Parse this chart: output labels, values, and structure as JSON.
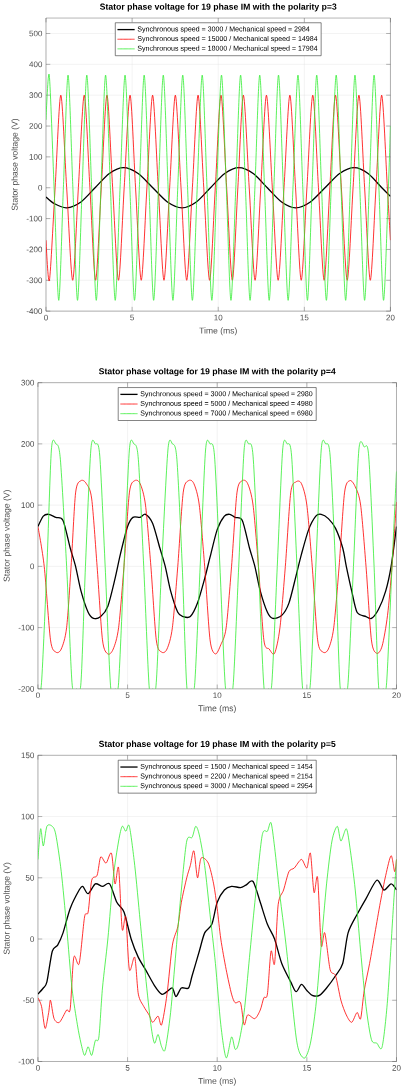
{
  "chart_data": [
    {
      "type": "line",
      "title": "Stator phase voltage for 19 phase IM with the polarity p=3",
      "xlabel": "Time (ms)",
      "ylabel": "Stator phase voltage (V)",
      "xlim": [
        0,
        20
      ],
      "xticks": [
        0,
        5,
        10,
        15,
        20
      ],
      "ylim": [
        -400,
        550
      ],
      "yticks": [
        -400,
        -300,
        -200,
        -100,
        0,
        100,
        200,
        300,
        400,
        500
      ],
      "grid": true,
      "legend": "top",
      "series": [
        {
          "name": "Synchronous speed = 3000 / Mechanical speed = 2984",
          "color": "#000000",
          "x": [
            0,
            0.5,
            1.2,
            2.03,
            2.85,
            3.68,
            4.5,
            5.35,
            6.2,
            7.05,
            7.9,
            8.73,
            9.55,
            10.38,
            11.2,
            12.03,
            12.85,
            13.68,
            14.5,
            15.35,
            16.2,
            17.05,
            17.9,
            18.7,
            19.5,
            20
          ],
          "values": [
            -30,
            -52,
            -65,
            -46,
            0,
            46,
            65,
            46,
            0,
            -46,
            -65,
            -46,
            0,
            46,
            65,
            46,
            0,
            -46,
            -65,
            -46,
            0,
            46,
            65,
            46,
            0,
            -28
          ]
        },
        {
          "name": "Synchronous speed = 15000 / Mechanical speed = 14984",
          "color": "#ff0000",
          "x": [
            0,
            0.2,
            0.53,
            0.86,
            1.2,
            1.55,
            1.88,
            2.22,
            2.55,
            2.88,
            3.21,
            3.54,
            3.87,
            4.21,
            4.54,
            4.88,
            5.2,
            5.53,
            5.86,
            6.19,
            6.52,
            6.85,
            7.18,
            7.51,
            7.84,
            8.17,
            8.5,
            8.83,
            9.16,
            9.5,
            9.83,
            10.16,
            10.49,
            10.82,
            11.14,
            11.46,
            11.8,
            12.14,
            12.47,
            12.8,
            13.14,
            13.48,
            13.82,
            14.16,
            14.49,
            14.82,
            15.15,
            15.49,
            15.82,
            16.15,
            16.48,
            16.81,
            17.15,
            17.49,
            17.83,
            18.17,
            18.5,
            18.83,
            19.16,
            19.49,
            19.82,
            20
          ],
          "values": [
            -170,
            -300,
            0,
            300,
            0,
            -300,
            0,
            300,
            0,
            -300,
            0,
            300,
            0,
            -300,
            0,
            300,
            0,
            -300,
            0,
            300,
            0,
            -300,
            0,
            300,
            0,
            -300,
            0,
            300,
            0,
            -300,
            0,
            300,
            0,
            -300,
            0,
            300,
            0,
            -300,
            0,
            300,
            0,
            -300,
            0,
            300,
            0,
            -300,
            0,
            300,
            0,
            -300,
            0,
            300,
            0,
            -300,
            0,
            300,
            0,
            -300,
            0,
            300,
            0,
            -170
          ]
        },
        {
          "name": "Synchronous speed = 18000 / Mechanical speed = 17984",
          "color": "#33ee33",
          "x": [
            0,
            0.19,
            0.47,
            0.74,
            1.01,
            1.28,
            1.56,
            1.83,
            2.1,
            2.37,
            2.65,
            2.92,
            3.19,
            3.46,
            3.74,
            4.02,
            4.3,
            4.59,
            4.87,
            5.14,
            5.42,
            5.7,
            5.98,
            6.25,
            6.53,
            6.81,
            7.09,
            7.37,
            7.65,
            7.94,
            8.22,
            8.5,
            8.78,
            9.07,
            9.35,
            9.63,
            9.91,
            10.19,
            10.47,
            10.74,
            11.02,
            11.3,
            11.58,
            11.85,
            12.13,
            12.41,
            12.69,
            12.96,
            13.23,
            13.5,
            13.78,
            14.06,
            14.34,
            14.63,
            14.91,
            15.18,
            15.45,
            15.72,
            16,
            16.28,
            16.56,
            16.85,
            17.13,
            17.4,
            17.67,
            17.94,
            18.22,
            18.5,
            18.77,
            19.05,
            19.33,
            19.6,
            19.88,
            20
          ],
          "values": [
            220,
            365,
            0,
            -365,
            0,
            365,
            0,
            -365,
            0,
            365,
            0,
            -365,
            0,
            365,
            0,
            -365,
            0,
            365,
            0,
            -365,
            0,
            365,
            0,
            -365,
            0,
            365,
            0,
            -365,
            0,
            365,
            0,
            -365,
            0,
            365,
            0,
            -365,
            0,
            365,
            0,
            -365,
            0,
            365,
            0,
            -365,
            0,
            365,
            0,
            -365,
            0,
            365,
            0,
            -365,
            0,
            365,
            0,
            -365,
            0,
            365,
            0,
            -365,
            0,
            365,
            0,
            -365,
            0,
            365,
            0,
            -365,
            0,
            365,
            0,
            -365,
            0,
            200
          ]
        }
      ]
    },
    {
      "type": "line",
      "title": "Stator phase voltage for 19 phase IM with the polarity p=4",
      "xlabel": "Time (ms)",
      "ylabel": "Stator phase voltage (V)",
      "xlim": [
        0,
        20
      ],
      "xticks": [
        0,
        5,
        10,
        15,
        20
      ],
      "ylim": [
        -200,
        300
      ],
      "yticks": [
        -200,
        -100,
        0,
        100,
        200,
        300
      ],
      "grid": true,
      "legend": "top",
      "series": [
        {
          "name": "Synchronous speed = 3000 / Mechanical speed = 2980",
          "color": "#000000",
          "x": [
            0,
            0.3,
            0.6,
            1.0,
            1.4,
            1.8,
            2.1,
            2.4,
            2.8,
            3.1,
            3.5,
            3.9,
            4.3,
            4.6,
            5.0,
            5.3,
            5.7,
            6.0,
            6.4,
            6.8,
            7.1,
            7.4,
            7.8,
            8.1,
            8.5,
            8.9,
            9.3,
            9.6,
            10.0,
            10.4,
            10.7,
            11.0,
            11.4,
            11.8,
            12.1,
            12.4,
            12.8,
            13.1,
            13.6,
            14.0,
            14.4,
            14.7,
            15.1,
            15.5,
            15.8,
            16.2,
            16.6,
            17.0,
            17.2,
            17.5,
            17.8,
            18.3,
            18.6,
            19.0,
            19.4,
            19.7,
            20
          ],
          "values": [
            65,
            82,
            85,
            80,
            75,
            30,
            0,
            -40,
            -75,
            -85,
            -82,
            -65,
            -20,
            20,
            65,
            80,
            80,
            85,
            70,
            30,
            0,
            -40,
            -75,
            -82,
            -82,
            -60,
            -20,
            15,
            60,
            82,
            85,
            80,
            75,
            30,
            0,
            -40,
            -75,
            -85,
            -80,
            -60,
            -15,
            20,
            60,
            82,
            85,
            78,
            62,
            30,
            0,
            -40,
            -75,
            -82,
            -85,
            -70,
            -40,
            0,
            65
          ]
        },
        {
          "name": "Synchronous speed = 5000 / Mechanical speed = 4980",
          "color": "#ff0000",
          "x": [
            0,
            0.35,
            0.7,
            1.0,
            1.3,
            1.6,
            1.85,
            2.1,
            2.4,
            2.7,
            3.0,
            3.3,
            3.6,
            3.9,
            4.2,
            4.5,
            4.8,
            5.1,
            5.4,
            5.7,
            6.0,
            6.3,
            6.6,
            6.9,
            7.2,
            7.5,
            7.8,
            8.1,
            8.4,
            8.7,
            9.0,
            9.3,
            9.6,
            9.9,
            10.2,
            10.5,
            10.8,
            11.1,
            11.4,
            11.7,
            12.0,
            12.3,
            12.6,
            12.9,
            13.2,
            13.5,
            13.8,
            14.1,
            14.4,
            14.7,
            15.0,
            15.3,
            15.6,
            15.9,
            16.2,
            16.5,
            16.8,
            17.1,
            17.4,
            17.7,
            18.0,
            18.3,
            18.6,
            18.9,
            19.2,
            19.5,
            19.75,
            20
          ],
          "values": [
            65,
            0,
            -120,
            -140,
            -135,
            -100,
            0,
            120,
            140,
            135,
            110,
            0,
            -120,
            -143,
            -135,
            -100,
            0,
            120,
            140,
            135,
            100,
            0,
            -120,
            -140,
            -135,
            -100,
            0,
            120,
            140,
            135,
            100,
            0,
            -120,
            -143,
            -128,
            -100,
            0,
            120,
            140,
            135,
            100,
            0,
            -120,
            -135,
            -142,
            -100,
            0,
            120,
            138,
            135,
            100,
            0,
            -120,
            -140,
            -135,
            -100,
            0,
            120,
            140,
            130,
            100,
            0,
            -120,
            -142,
            -130,
            -80,
            0,
            105
          ]
        },
        {
          "name": "Synchronous speed = 7000 / Mechanical speed = 6980",
          "color": "#33ee33",
          "x": [
            0,
            0.2,
            0.5,
            0.75,
            1.0,
            1.25,
            1.6,
            1.9,
            2.15,
            2.4,
            2.65,
            2.95,
            3.2,
            3.45,
            3.75,
            4.05,
            4.3,
            4.5,
            4.8,
            5.1,
            5.35,
            5.6,
            5.9,
            6.2,
            6.4,
            6.6,
            6.9,
            7.25,
            7.5,
            7.75,
            8.05,
            8.3,
            8.55,
            8.75,
            9.05,
            9.35,
            9.6,
            9.85,
            10.15,
            10.45,
            10.7,
            10.9,
            11.2,
            11.5,
            11.75,
            12.0,
            12.3,
            12.6,
            12.85,
            13.05,
            13.35,
            13.65,
            13.9,
            14.15,
            14.45,
            14.75,
            15.0,
            15.2,
            15.5,
            15.8,
            16.05,
            16.3,
            16.6,
            16.85,
            17.1,
            17.3,
            17.6,
            17.9,
            18.2,
            18.45,
            18.75,
            19.0,
            19.25,
            19.45,
            19.75,
            20
          ],
          "values": [
            -200,
            -190,
            0,
            190,
            200,
            175,
            0,
            -190,
            -200,
            -190,
            0,
            190,
            200,
            180,
            0,
            -195,
            -200,
            -190,
            0,
            190,
            200,
            175,
            0,
            -195,
            -200,
            -190,
            0,
            190,
            200,
            175,
            0,
            -195,
            -200,
            -190,
            0,
            190,
            200,
            180,
            0,
            -195,
            -200,
            -190,
            0,
            190,
            200,
            180,
            0,
            -195,
            -200,
            -190,
            0,
            190,
            200,
            180,
            0,
            -195,
            -200,
            -190,
            0,
            190,
            200,
            180,
            0,
            -195,
            -200,
            -190,
            0,
            190,
            195,
            180,
            0,
            -195,
            -200,
            -190,
            0,
            155
          ]
        }
      ]
    },
    {
      "type": "line",
      "title": "Stator phase voltage for 19 phase IM with the polarity p=5",
      "xlabel": "Time (ms)",
      "ylabel": "Stator phase voltage (V)",
      "xlim": [
        0,
        20
      ],
      "xticks": [
        0,
        5,
        10,
        15,
        20
      ],
      "ylim": [
        -100,
        150
      ],
      "yticks": [
        -100,
        -50,
        0,
        50,
        100,
        150
      ],
      "grid": true,
      "legend": "top",
      "series": [
        {
          "name": "Synchronous speed = 1500 / Mechanical speed = 1454",
          "color": "#000000",
          "x": [
            0,
            0.3,
            0.5,
            0.8,
            1.1,
            1.4,
            1.8,
            2.3,
            2.5,
            2.8,
            3.2,
            3.6,
            4.0,
            4.4,
            4.8,
            5.2,
            5.6,
            6.0,
            6.5,
            6.9,
            7.2,
            7.5,
            7.7,
            8.0,
            8.4,
            8.6,
            9.0,
            9.3,
            9.7,
            10.0,
            10.4,
            10.8,
            11.3,
            11.6,
            12.0,
            12.4,
            12.8,
            13.2,
            13.6,
            14.1,
            14.4,
            14.7,
            15.0,
            15.3,
            15.7,
            16.1,
            16.6,
            17.0,
            17.3,
            17.8,
            18.3,
            18.9,
            19.3,
            19.7,
            20
          ],
          "values": [
            -45,
            -40,
            -35,
            -10,
            -5,
            5,
            25,
            40,
            43,
            37,
            45,
            43,
            45,
            30,
            22,
            0,
            -15,
            -25,
            -38,
            -45,
            -43,
            -40,
            -47,
            -40,
            -40,
            -30,
            -10,
            5,
            12,
            30,
            40,
            43,
            42,
            44,
            47,
            30,
            12,
            0,
            -20,
            -35,
            -43,
            -37,
            -42,
            -46,
            -46,
            -40,
            -30,
            -20,
            5,
            20,
            33,
            48,
            40,
            45,
            40
          ]
        },
        {
          "name": "Synchronous speed = 2200 / Mechanical speed = 2154",
          "color": "#ff0000",
          "x": [
            0,
            0.2,
            0.4,
            0.6,
            0.7,
            0.9,
            1.2,
            1.6,
            1.8,
            2.0,
            2.3,
            2.6,
            2.8,
            3.0,
            3.3,
            3.5,
            3.8,
            4.1,
            4.3,
            4.5,
            4.7,
            4.9,
            5.1,
            5.4,
            5.6,
            5.9,
            6.2,
            6.4,
            6.7,
            6.9,
            7.2,
            7.5,
            7.8,
            8.0,
            8.3,
            8.5,
            8.7,
            8.9,
            9.1,
            9.5,
            9.8,
            10.0,
            10.2,
            10.5,
            10.8,
            11.0,
            11.3,
            11.5,
            11.7,
            12.1,
            12.4,
            12.6,
            12.8,
            13.0,
            13.2,
            13.4,
            13.7,
            14.0,
            14.3,
            14.7,
            15.0,
            15.2,
            15.4,
            15.6,
            15.8,
            16.0,
            16.3,
            16.6,
            16.9,
            17.2,
            17.5,
            17.8,
            18.0,
            18.2,
            18.5,
            18.8,
            19.1,
            19.4,
            19.7,
            19.9,
            20
          ],
          "values": [
            -48,
            -55,
            -73,
            -60,
            -50,
            -65,
            -68,
            -58,
            -57,
            -15,
            -20,
            18,
            22,
            48,
            52,
            67,
            62,
            70,
            45,
            58,
            8,
            18,
            -25,
            -15,
            -45,
            -55,
            -62,
            -68,
            -63,
            -70,
            -45,
            -5,
            10,
            30,
            50,
            60,
            72,
            50,
            66,
            62,
            45,
            25,
            0,
            -25,
            -45,
            -52,
            -52,
            -70,
            -62,
            -65,
            -58,
            -48,
            -45,
            -10,
            -20,
            28,
            40,
            55,
            58,
            65,
            58,
            70,
            38,
            50,
            -5,
            5,
            -25,
            -30,
            -50,
            -62,
            -68,
            -60,
            -65,
            -42,
            -20,
            5,
            30,
            52,
            68,
            55,
            65
          ]
        },
        {
          "name": "Synchronous speed = 3000 / Mechanical speed = 2954",
          "color": "#33ee33",
          "x": [
            0,
            0.15,
            0.3,
            0.5,
            0.8,
            1.0,
            1.3,
            1.6,
            1.9,
            2.2,
            2.4,
            2.6,
            2.8,
            3.0,
            3.2,
            3.4,
            3.6,
            3.9,
            4.2,
            4.5,
            4.7,
            4.9,
            5.1,
            5.4,
            5.7,
            6.0,
            6.3,
            6.5,
            6.7,
            6.9,
            7.1,
            7.4,
            7.7,
            8.0,
            8.3,
            8.6,
            8.8,
            9.0,
            9.3,
            9.6,
            9.9,
            10.2,
            10.5,
            10.8,
            11.0,
            11.2,
            11.5,
            11.8,
            12.1,
            12.5,
            12.8,
            13.0,
            13.2,
            13.5,
            13.8,
            14.1,
            14.4,
            14.6,
            14.9,
            15.2,
            15.5,
            15.8,
            16.1,
            16.4,
            16.7,
            16.9,
            17.2,
            17.4,
            17.7,
            18.0,
            18.3,
            18.6,
            18.9,
            19.2,
            19.5,
            19.8,
            20
          ],
          "values": [
            65,
            90,
            76,
            92,
            92,
            85,
            55,
            10,
            -40,
            -70,
            -85,
            -95,
            -88,
            -95,
            -83,
            -80,
            -40,
            0,
            50,
            80,
            92,
            88,
            92,
            60,
            15,
            -30,
            -70,
            -85,
            -78,
            -88,
            -90,
            -60,
            -10,
            40,
            80,
            83,
            92,
            85,
            60,
            20,
            -20,
            -70,
            -97,
            -80,
            -90,
            -85,
            -60,
            -15,
            30,
            84,
            88,
            95,
            75,
            35,
            0,
            -40,
            -80,
            -93,
            -97,
            -85,
            -55,
            -5,
            45,
            80,
            92,
            80,
            90,
            75,
            40,
            -10,
            -55,
            -82,
            -85,
            -88,
            -50,
            20,
            65
          ]
        }
      ]
    }
  ]
}
